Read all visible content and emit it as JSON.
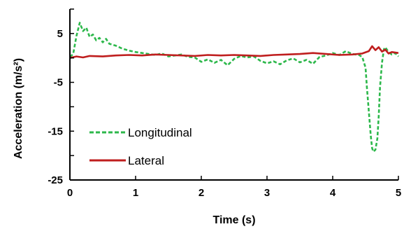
{
  "chart_data": {
    "type": "line",
    "title": "",
    "xlabel": "Time (s)",
    "ylabel": "Acceleration (m/s²)",
    "xlim": [
      0,
      5
    ],
    "ylim": [
      -25,
      10
    ],
    "xticks": [
      0,
      1,
      2,
      3,
      4,
      5
    ],
    "yticks": [
      5,
      -5,
      -15,
      -25
    ],
    "grid": false,
    "legend": {
      "placement": "bottom-left"
    },
    "series": [
      {
        "name": "Longitudinal",
        "color": "#2db84b",
        "style": "dashed",
        "points": [
          [
            0.0,
            0.2
          ],
          [
            0.05,
            0.8
          ],
          [
            0.1,
            4.5
          ],
          [
            0.15,
            7.2
          ],
          [
            0.2,
            5.5
          ],
          [
            0.25,
            6.2
          ],
          [
            0.3,
            4.3
          ],
          [
            0.35,
            4.8
          ],
          [
            0.4,
            3.6
          ],
          [
            0.45,
            4.1
          ],
          [
            0.5,
            3.2
          ],
          [
            0.55,
            3.9
          ],
          [
            0.6,
            2.9
          ],
          [
            0.7,
            2.5
          ],
          [
            0.8,
            1.9
          ],
          [
            0.9,
            1.5
          ],
          [
            1.0,
            1.2
          ],
          [
            1.1,
            1.0
          ],
          [
            1.2,
            0.8
          ],
          [
            1.3,
            0.6
          ],
          [
            1.4,
            0.9
          ],
          [
            1.5,
            0.3
          ],
          [
            1.6,
            0.5
          ],
          [
            1.7,
            0.7
          ],
          [
            1.8,
            0.2
          ],
          [
            1.9,
            0.1
          ],
          [
            2.0,
            -0.8
          ],
          [
            2.1,
            -0.3
          ],
          [
            2.2,
            -1.0
          ],
          [
            2.3,
            -0.4
          ],
          [
            2.4,
            -1.5
          ],
          [
            2.5,
            -0.2
          ],
          [
            2.6,
            0.4
          ],
          [
            2.7,
            0.1
          ],
          [
            2.8,
            0.3
          ],
          [
            2.9,
            -0.6
          ],
          [
            3.0,
            -1.1
          ],
          [
            3.1,
            -0.7
          ],
          [
            3.2,
            -1.3
          ],
          [
            3.3,
            -0.5
          ],
          [
            3.4,
            -0.1
          ],
          [
            3.5,
            -0.9
          ],
          [
            3.6,
            -0.4
          ],
          [
            3.7,
            -1.2
          ],
          [
            3.8,
            0.2
          ],
          [
            3.9,
            0.5
          ],
          [
            4.0,
            1.0
          ],
          [
            4.1,
            0.6
          ],
          [
            4.2,
            1.4
          ],
          [
            4.3,
            0.8
          ],
          [
            4.4,
            0.6
          ],
          [
            4.45,
            0.2
          ],
          [
            4.5,
            -2.0
          ],
          [
            4.52,
            -6.0
          ],
          [
            4.55,
            -11.0
          ],
          [
            4.58,
            -16.0
          ],
          [
            4.6,
            -18.5
          ],
          [
            4.62,
            -19.2
          ],
          [
            4.65,
            -18.8
          ],
          [
            4.68,
            -16.5
          ],
          [
            4.7,
            -12.0
          ],
          [
            4.72,
            -6.0
          ],
          [
            4.75,
            -1.0
          ],
          [
            4.78,
            1.8
          ],
          [
            4.8,
            2.2
          ],
          [
            4.85,
            1.2
          ],
          [
            4.9,
            0.7
          ],
          [
            4.95,
            1.0
          ],
          [
            5.0,
            0.3
          ]
        ]
      },
      {
        "name": "Lateral",
        "color": "#bf1e1e",
        "style": "solid",
        "points": [
          [
            0.0,
            0.0
          ],
          [
            0.1,
            0.3
          ],
          [
            0.2,
            0.1
          ],
          [
            0.3,
            0.4
          ],
          [
            0.5,
            0.3
          ],
          [
            0.7,
            0.5
          ],
          [
            0.9,
            0.6
          ],
          [
            1.1,
            0.5
          ],
          [
            1.3,
            0.7
          ],
          [
            1.5,
            0.6
          ],
          [
            1.7,
            0.5
          ],
          [
            1.9,
            0.4
          ],
          [
            2.1,
            0.6
          ],
          [
            2.3,
            0.5
          ],
          [
            2.5,
            0.6
          ],
          [
            2.7,
            0.5
          ],
          [
            2.9,
            0.4
          ],
          [
            3.1,
            0.6
          ],
          [
            3.3,
            0.7
          ],
          [
            3.5,
            0.8
          ],
          [
            3.7,
            1.0
          ],
          [
            3.9,
            0.8
          ],
          [
            4.1,
            0.6
          ],
          [
            4.3,
            0.7
          ],
          [
            4.45,
            0.9
          ],
          [
            4.55,
            1.4
          ],
          [
            4.6,
            2.4
          ],
          [
            4.65,
            1.6
          ],
          [
            4.7,
            2.2
          ],
          [
            4.75,
            1.3
          ],
          [
            4.8,
            1.7
          ],
          [
            4.85,
            0.9
          ],
          [
            4.9,
            1.2
          ],
          [
            5.0,
            1.0
          ]
        ]
      }
    ]
  }
}
